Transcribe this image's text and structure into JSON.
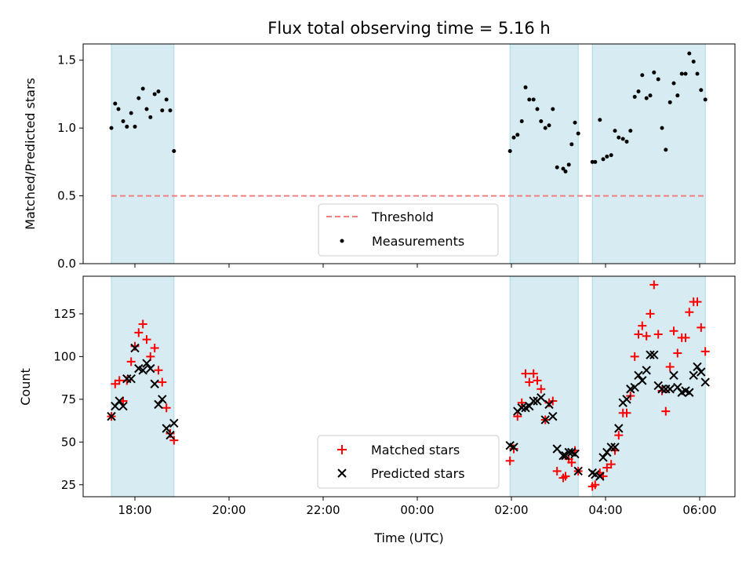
{
  "chart_data": {
    "title": "Flux total observing time = 5.16 h",
    "xlabel": "Time (UTC)",
    "x_ticks": [
      "18:00",
      "20:00",
      "22:00",
      "00:00",
      "02:00",
      "04:00",
      "06:00"
    ],
    "x_tick_hours": [
      0,
      2,
      4,
      6,
      8,
      10,
      12
    ],
    "x_range_hours_after_18": [
      -1.1,
      12.75
    ],
    "observing_windows_hours_after_18": [
      [
        -0.5,
        0.83
      ],
      [
        7.97,
        9.42
      ],
      [
        9.72,
        12.12
      ]
    ],
    "window_color": "#add8e6",
    "panels": [
      {
        "type": "scatter",
        "ylabel": "Matched/Predicted stars",
        "ylim": [
          0,
          1.62
        ],
        "y_ticks": [
          0.0,
          0.5,
          1.0,
          1.5
        ],
        "y_tick_labels": [
          "0.0",
          "0.5",
          "1.0",
          "1.5"
        ],
        "threshold": {
          "name": "Threshold",
          "value": 0.5,
          "x_range": [
            -0.5,
            12.12
          ],
          "color": "#f08080"
        },
        "series": [
          {
            "name": "Measurements",
            "color": "#000000",
            "marker": "dot",
            "points": [
              [
                -0.5,
                1.0
              ],
              [
                -0.42,
                1.18
              ],
              [
                -0.35,
                1.14
              ],
              [
                -0.25,
                1.05
              ],
              [
                -0.17,
                1.01
              ],
              [
                -0.08,
                1.11
              ],
              [
                0.0,
                1.01
              ],
              [
                0.08,
                1.22
              ],
              [
                0.17,
                1.29
              ],
              [
                0.25,
                1.14
              ],
              [
                0.33,
                1.08
              ],
              [
                0.42,
                1.25
              ],
              [
                0.5,
                1.27
              ],
              [
                0.58,
                1.13
              ],
              [
                0.67,
                1.21
              ],
              [
                0.75,
                1.13
              ],
              [
                0.83,
                0.83
              ],
              [
                7.97,
                0.83
              ],
              [
                8.05,
                0.93
              ],
              [
                8.13,
                0.95
              ],
              [
                8.22,
                1.05
              ],
              [
                8.3,
                1.3
              ],
              [
                8.38,
                1.21
              ],
              [
                8.47,
                1.21
              ],
              [
                8.55,
                1.14
              ],
              [
                8.63,
                1.05
              ],
              [
                8.72,
                1.0
              ],
              [
                8.8,
                1.02
              ],
              [
                8.88,
                1.14
              ],
              [
                8.97,
                0.71
              ],
              [
                9.1,
                0.7
              ],
              [
                9.15,
                0.68
              ],
              [
                9.22,
                0.73
              ],
              [
                9.28,
                0.88
              ],
              [
                9.35,
                1.04
              ],
              [
                9.42,
                0.96
              ],
              [
                9.72,
                0.75
              ],
              [
                9.78,
                0.75
              ],
              [
                9.88,
                1.06
              ],
              [
                9.95,
                0.77
              ],
              [
                10.03,
                0.79
              ],
              [
                10.12,
                0.8
              ],
              [
                10.2,
                0.98
              ],
              [
                10.28,
                0.93
              ],
              [
                10.37,
                0.92
              ],
              [
                10.45,
                0.9
              ],
              [
                10.53,
                0.98
              ],
              [
                10.62,
                1.23
              ],
              [
                10.7,
                1.27
              ],
              [
                10.78,
                1.39
              ],
              [
                10.87,
                1.22
              ],
              [
                10.95,
                1.24
              ],
              [
                11.03,
                1.41
              ],
              [
                11.12,
                1.36
              ],
              [
                11.2,
                1.0
              ],
              [
                11.28,
                0.84
              ],
              [
                11.37,
                1.19
              ],
              [
                11.45,
                1.33
              ],
              [
                11.53,
                1.24
              ],
              [
                11.62,
                1.4
              ],
              [
                11.7,
                1.4
              ],
              [
                11.78,
                1.55
              ],
              [
                11.87,
                1.49
              ],
              [
                11.95,
                1.4
              ],
              [
                12.03,
                1.28
              ],
              [
                12.12,
                1.21
              ]
            ]
          }
        ],
        "legend": {
          "location": "lower-center",
          "entries": [
            "Threshold",
            "Measurements"
          ]
        }
      },
      {
        "type": "scatter",
        "ylabel": "Count",
        "ylim": [
          18,
          147
        ],
        "y_ticks": [
          25,
          50,
          75,
          100,
          125
        ],
        "y_tick_labels": [
          "25",
          "50",
          "75",
          "100",
          "125"
        ],
        "series": [
          {
            "name": "Matched stars",
            "color": "#ff0000",
            "marker": "plus",
            "points": [
              [
                -0.5,
                65
              ],
              [
                -0.42,
                84
              ],
              [
                -0.33,
                86
              ],
              [
                -0.25,
                74
              ],
              [
                -0.17,
                86
              ],
              [
                -0.08,
                97
              ],
              [
                0.0,
                106
              ],
              [
                0.08,
                114
              ],
              [
                0.17,
                119
              ],
              [
                0.25,
                110
              ],
              [
                0.33,
                100
              ],
              [
                0.42,
                105
              ],
              [
                0.5,
                92
              ],
              [
                0.58,
                85
              ],
              [
                0.67,
                70
              ],
              [
                0.75,
                55
              ],
              [
                0.83,
                51
              ],
              [
                7.97,
                39
              ],
              [
                8.05,
                46
              ],
              [
                8.13,
                65
              ],
              [
                8.22,
                73
              ],
              [
                8.3,
                90
              ],
              [
                8.38,
                85
              ],
              [
                8.47,
                90
              ],
              [
                8.55,
                86
              ],
              [
                8.63,
                81
              ],
              [
                8.72,
                63
              ],
              [
                8.8,
                73
              ],
              [
                8.88,
                74
              ],
              [
                8.97,
                33
              ],
              [
                9.1,
                29
              ],
              [
                9.15,
                30
              ],
              [
                9.22,
                40
              ],
              [
                9.28,
                38
              ],
              [
                9.35,
                45
              ],
              [
                9.42,
                33
              ],
              [
                9.72,
                24
              ],
              [
                9.78,
                25
              ],
              [
                9.88,
                32
              ],
              [
                9.95,
                30
              ],
              [
                10.03,
                35
              ],
              [
                10.12,
                37
              ],
              [
                10.2,
                45
              ],
              [
                10.28,
                54
              ],
              [
                10.37,
                67
              ],
              [
                10.45,
                67
              ],
              [
                10.53,
                77
              ],
              [
                10.62,
                100
              ],
              [
                10.7,
                113
              ],
              [
                10.78,
                118
              ],
              [
                10.87,
                112
              ],
              [
                10.95,
                125
              ],
              [
                11.03,
                142
              ],
              [
                11.12,
                113
              ],
              [
                11.2,
                80
              ],
              [
                11.28,
                68
              ],
              [
                11.37,
                94
              ],
              [
                11.45,
                115
              ],
              [
                11.53,
                102
              ],
              [
                11.62,
                111
              ],
              [
                11.7,
                111
              ],
              [
                11.78,
                126
              ],
              [
                11.87,
                132
              ],
              [
                11.95,
                132
              ],
              [
                12.03,
                117
              ],
              [
                12.12,
                103
              ]
            ]
          },
          {
            "name": "Predicted stars",
            "color": "#000000",
            "marker": "x",
            "points": [
              [
                -0.5,
                65
              ],
              [
                -0.42,
                71
              ],
              [
                -0.33,
                74
              ],
              [
                -0.25,
                71
              ],
              [
                -0.17,
                87
              ],
              [
                -0.08,
                87
              ],
              [
                0.0,
                105
              ],
              [
                0.08,
                93
              ],
              [
                0.17,
                92
              ],
              [
                0.25,
                96
              ],
              [
                0.33,
                93
              ],
              [
                0.42,
                84
              ],
              [
                0.5,
                72
              ],
              [
                0.58,
                75
              ],
              [
                0.67,
                58
              ],
              [
                0.75,
                54
              ],
              [
                0.83,
                61
              ],
              [
                7.97,
                48
              ],
              [
                8.05,
                47
              ],
              [
                8.13,
                68
              ],
              [
                8.22,
                70
              ],
              [
                8.3,
                70
              ],
              [
                8.38,
                71
              ],
              [
                8.47,
                74
              ],
              [
                8.55,
                74
              ],
              [
                8.63,
                76
              ],
              [
                8.72,
                63
              ],
              [
                8.8,
                72
              ],
              [
                8.88,
                65
              ],
              [
                8.97,
                46
              ],
              [
                9.1,
                42
              ],
              [
                9.15,
                42
              ],
              [
                9.22,
                44
              ],
              [
                9.28,
                44
              ],
              [
                9.35,
                43
              ],
              [
                9.42,
                33
              ],
              [
                9.72,
                32
              ],
              [
                9.78,
                31
              ],
              [
                9.88,
                30
              ],
              [
                9.95,
                41
              ],
              [
                10.03,
                44
              ],
              [
                10.12,
                47
              ],
              [
                10.2,
                47
              ],
              [
                10.28,
                58
              ],
              [
                10.37,
                73
              ],
              [
                10.45,
                75
              ],
              [
                10.53,
                81
              ],
              [
                10.62,
                82
              ],
              [
                10.7,
                89
              ],
              [
                10.78,
                86
              ],
              [
                10.87,
                92
              ],
              [
                10.95,
                101
              ],
              [
                11.03,
                101
              ],
              [
                11.12,
                83
              ],
              [
                11.2,
                81
              ],
              [
                11.28,
                81
              ],
              [
                11.37,
                81
              ],
              [
                11.45,
                89
              ],
              [
                11.53,
                82
              ],
              [
                11.62,
                79
              ],
              [
                11.7,
                80
              ],
              [
                11.78,
                79
              ],
              [
                11.87,
                89
              ],
              [
                11.95,
                94
              ],
              [
                12.03,
                91
              ],
              [
                12.12,
                85
              ]
            ]
          }
        ],
        "legend": {
          "location": "lower-center",
          "entries": [
            "Matched stars",
            "Predicted stars"
          ]
        }
      }
    ]
  }
}
